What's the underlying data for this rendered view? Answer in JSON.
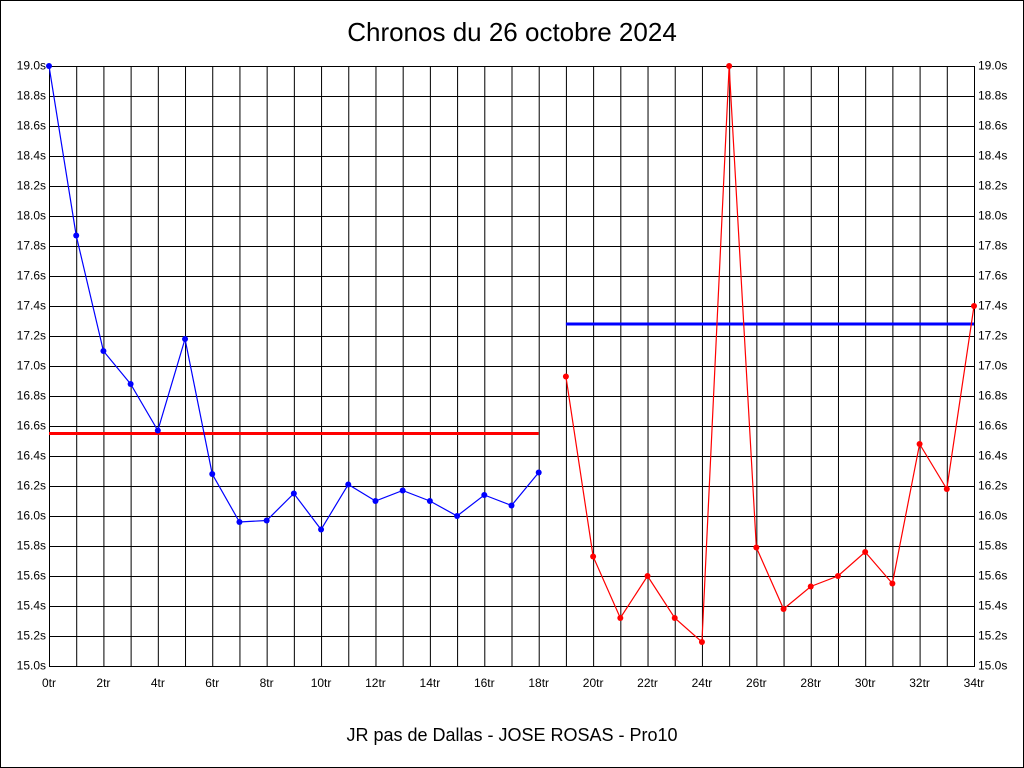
{
  "chart_data": {
    "type": "line",
    "title": "Chronos du 26 octobre 2024",
    "subtitle": "JR pas de Dallas - JOSE ROSAS - Pro10",
    "x": [
      0,
      1,
      2,
      3,
      4,
      5,
      6,
      7,
      8,
      9,
      10,
      11,
      12,
      13,
      14,
      15,
      16,
      17,
      18,
      19,
      20,
      21,
      22,
      23,
      24,
      25,
      26,
      27,
      28,
      29,
      30,
      31,
      32,
      33,
      34
    ],
    "series": [
      {
        "color": "#0000ff",
        "values": [
          19.0,
          17.87,
          17.1,
          16.88,
          16.57,
          17.18,
          16.28,
          15.96,
          15.97,
          16.15,
          15.91,
          16.21,
          16.1,
          16.17,
          16.1,
          16.0,
          16.14,
          16.07,
          16.29,
          null,
          null,
          null,
          null,
          null,
          null,
          null,
          null,
          null,
          null,
          null,
          null,
          null,
          null,
          null,
          null
        ]
      },
      {
        "color": "#ff0000",
        "values": [
          null,
          null,
          null,
          null,
          null,
          null,
          null,
          null,
          null,
          null,
          null,
          null,
          null,
          null,
          null,
          null,
          null,
          null,
          null,
          16.93,
          15.73,
          15.32,
          15.6,
          15.32,
          15.16,
          19.0,
          15.79,
          15.38,
          15.53,
          15.6,
          15.76,
          15.55,
          16.48,
          16.18,
          17.4
        ]
      }
    ],
    "reference_lines": [
      {
        "value": 16.55,
        "from": 0,
        "to": 18,
        "color": "#ff0000"
      },
      {
        "value": 17.28,
        "from": 19,
        "to": 34,
        "color": "#0000ff"
      }
    ],
    "xlim": [
      0,
      34
    ],
    "xticks": [
      {
        "value": 0,
        "label": "0tr"
      },
      {
        "value": 2,
        "label": "2tr"
      },
      {
        "value": 4,
        "label": "4tr"
      },
      {
        "value": 6,
        "label": "6tr"
      },
      {
        "value": 8,
        "label": "8tr"
      },
      {
        "value": 10,
        "label": "10tr"
      },
      {
        "value": 12,
        "label": "12tr"
      },
      {
        "value": 14,
        "label": "14tr"
      },
      {
        "value": 16,
        "label": "16tr"
      },
      {
        "value": 18,
        "label": "18tr"
      },
      {
        "value": 20,
        "label": "20tr"
      },
      {
        "value": 22,
        "label": "22tr"
      },
      {
        "value": 24,
        "label": "24tr"
      },
      {
        "value": 26,
        "label": "26tr"
      },
      {
        "value": 28,
        "label": "28tr"
      },
      {
        "value": 30,
        "label": "30tr"
      },
      {
        "value": 32,
        "label": "32tr"
      },
      {
        "value": 34,
        "label": "34tr"
      }
    ],
    "ylim": [
      15.0,
      19.0
    ],
    "yticks": [
      {
        "value": 15.0,
        "label": "15.0s"
      },
      {
        "value": 15.2,
        "label": "15.2s"
      },
      {
        "value": 15.4,
        "label": "15.4s"
      },
      {
        "value": 15.6,
        "label": "15.6s"
      },
      {
        "value": 15.8,
        "label": "15.8s"
      },
      {
        "value": 16.0,
        "label": "16.0s"
      },
      {
        "value": 16.2,
        "label": "16.2s"
      },
      {
        "value": 16.4,
        "label": "16.4s"
      },
      {
        "value": 16.6,
        "label": "16.6s"
      },
      {
        "value": 16.8,
        "label": "16.8s"
      },
      {
        "value": 17.0,
        "label": "17.0s"
      },
      {
        "value": 17.2,
        "label": "17.2s"
      },
      {
        "value": 17.4,
        "label": "17.4s"
      },
      {
        "value": 17.6,
        "label": "17.6s"
      },
      {
        "value": 17.8,
        "label": "17.8s"
      },
      {
        "value": 18.0,
        "label": "18.0s"
      },
      {
        "value": 18.2,
        "label": "18.2s"
      },
      {
        "value": 18.4,
        "label": "18.4s"
      },
      {
        "value": 18.6,
        "label": "18.6s"
      },
      {
        "value": 18.8,
        "label": "18.8s"
      },
      {
        "value": 19.0,
        "label": "19.0s"
      }
    ],
    "grid": true
  }
}
